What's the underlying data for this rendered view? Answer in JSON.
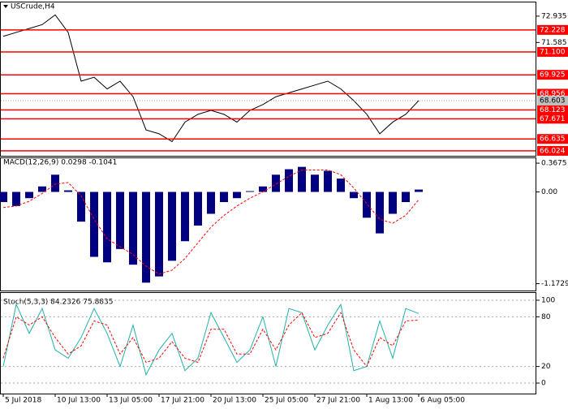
{
  "chart_data": [
    {
      "type": "line",
      "title": "USCrude,H4",
      "categories": [
        "5 Jul 2018",
        null,
        null,
        null,
        "10 Jul 13:00",
        null,
        null,
        null,
        "13 Jul 05:00",
        null,
        null,
        null,
        "17 Jul 21:00",
        null,
        null,
        null,
        "20 Jul 13:00",
        null,
        null,
        null,
        "25 Jul 05:00",
        null,
        null,
        null,
        "27 Jul 21:00",
        null,
        null,
        null,
        "1 Aug 13:00",
        null,
        null,
        null,
        "6 Aug 05:00"
      ],
      "values": [
        71.9,
        72.1,
        72.3,
        72.5,
        73.0,
        72.1,
        69.6,
        69.8,
        69.2,
        69.6,
        68.8,
        67.1,
        66.9,
        66.5,
        67.5,
        67.9,
        68.1,
        67.9,
        67.5,
        68.1,
        68.4,
        68.8,
        69.0,
        69.2,
        69.4,
        69.6,
        69.2,
        68.6,
        67.9,
        66.9,
        67.5,
        67.9,
        68.6
      ],
      "color": "#000000",
      "ylim": [
        65.77,
        73.43
      ],
      "yticks": [
        72.935,
        71.585
      ],
      "levels": [
        72.228,
        {
          "value": 71.1,
          "label": "71.100"
        },
        69.925,
        68.956,
        68.123,
        67.671,
        66.635,
        66.024
      ],
      "level_color": "#ff0000",
      "current": 68.603
    },
    {
      "type": "bar",
      "title": "MACD(12,26,9) 0.0298 -0.1041",
      "values": [
        -0.13,
        -0.18,
        -0.08,
        0.07,
        0.22,
        0.02,
        -0.38,
        -0.83,
        -0.9,
        -0.73,
        -0.93,
        -1.16,
        -1.08,
        -0.88,
        -0.63,
        -0.43,
        -0.28,
        -0.13,
        -0.08,
        0.01,
        0.07,
        0.22,
        0.29,
        0.32,
        0.22,
        0.27,
        0.17,
        -0.08,
        -0.33,
        -0.53,
        -0.28,
        -0.13,
        0.03
      ],
      "color": "#000080",
      "signal": [
        -0.2,
        -0.18,
        -0.12,
        -0.02,
        0.1,
        0.12,
        -0.05,
        -0.35,
        -0.6,
        -0.7,
        -0.8,
        -0.95,
        -1.05,
        -1.0,
        -0.85,
        -0.65,
        -0.45,
        -0.3,
        -0.18,
        -0.08,
        0.0,
        0.1,
        0.2,
        0.28,
        0.28,
        0.28,
        0.22,
        0.05,
        -0.15,
        -0.35,
        -0.4,
        -0.3,
        -0.1
      ],
      "signal_color": "#ff0000",
      "ylim": [
        -1.25,
        0.42
      ],
      "yticks": [
        0.3675,
        {
          "value": 0,
          "label": "0.00"
        },
        -1.1729
      ]
    },
    {
      "type": "line",
      "title": "Stoch(5,3,3) 84.2326 75.8835",
      "values": [
        20,
        95,
        60,
        90,
        40,
        30,
        55,
        90,
        60,
        20,
        70,
        10,
        40,
        60,
        15,
        30,
        85,
        55,
        25,
        40,
        80,
        20,
        90,
        85,
        40,
        70,
        95,
        15,
        20,
        75,
        30,
        90,
        84
      ],
      "color": "#20b2aa",
      "signal": [
        30,
        80,
        70,
        80,
        55,
        35,
        45,
        75,
        70,
        35,
        55,
        25,
        30,
        50,
        30,
        25,
        65,
        65,
        35,
        35,
        65,
        40,
        70,
        85,
        55,
        60,
        85,
        40,
        20,
        55,
        45,
        75,
        76
      ],
      "signal_color": "#ff0000",
      "ylim": [
        -12.7,
        107.8
      ],
      "yticks": [
        100,
        80,
        20,
        0
      ]
    }
  ]
}
